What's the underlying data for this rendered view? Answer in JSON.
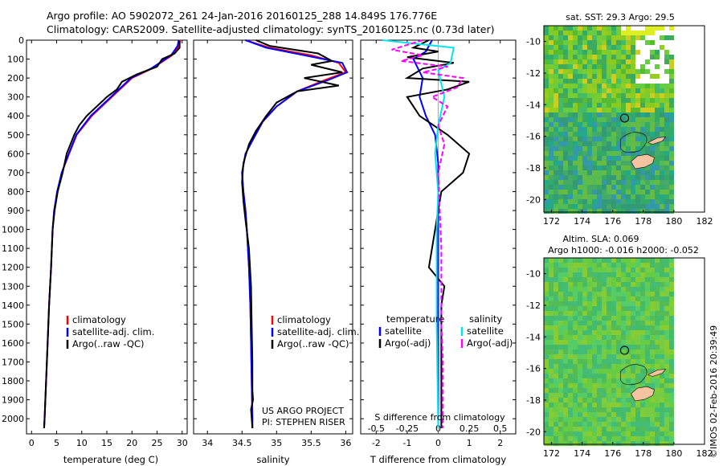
{
  "header": {
    "line1": "Argo profile: AO 5902072_261 24-Jan-2016 20160125_288 14.849S 176.776E",
    "line2": "Climatology: CARS2009. Satellite-adjusted climatology: synTS_20160125.nc (0.73d later)"
  },
  "stamp": "©IMOS 02-Feb-2016 20:39:49",
  "colors": {
    "climatology": "#ff0000",
    "satellite": "#0000ff",
    "argo": "#000000",
    "sal_sat": "#00e5ee",
    "sal_argo": "#ff00ff"
  },
  "chart_data": [
    {
      "type": "line",
      "id": "temperature",
      "xlabel": "temperature (deg C)",
      "ylabel": "",
      "xlim": [
        -1,
        31
      ],
      "ylim": [
        2080,
        0
      ],
      "xticks": [
        0,
        5,
        10,
        15,
        20,
        25,
        30
      ],
      "yticks": [
        0,
        100,
        200,
        300,
        400,
        500,
        600,
        700,
        800,
        900,
        1000,
        1100,
        1200,
        1300,
        1400,
        1500,
        1600,
        1700,
        1800,
        1900,
        2000
      ],
      "legend": [
        "climatology",
        "satellite-adj. clim.",
        "Argo(..raw -QC)"
      ],
      "series": [
        {
          "name": "climatology",
          "color": "#ff0000",
          "points": [
            [
              29.6,
              0
            ],
            [
              29.4,
              30
            ],
            [
              28,
              80
            ],
            [
              24,
              150
            ],
            [
              20,
              200
            ],
            [
              16,
              300
            ],
            [
              12,
              400
            ],
            [
              9,
              500
            ],
            [
              7.5,
              600
            ],
            [
              6,
              700
            ],
            [
              5.2,
              800
            ],
            [
              4.5,
              900
            ],
            [
              4.2,
              1000
            ],
            [
              3.9,
              1200
            ],
            [
              3.5,
              1400
            ],
            [
              3.2,
              1600
            ],
            [
              2.9,
              1800
            ],
            [
              2.6,
              2000
            ],
            [
              2.5,
              2050
            ]
          ]
        },
        {
          "name": "satellite-adj. clim.",
          "color": "#0000ff",
          "points": [
            [
              29.3,
              0
            ],
            [
              29.1,
              30
            ],
            [
              27.8,
              80
            ],
            [
              23.8,
              150
            ],
            [
              19.8,
              200
            ],
            [
              15.8,
              300
            ],
            [
              11.8,
              400
            ],
            [
              8.9,
              500
            ],
            [
              7.4,
              600
            ],
            [
              6,
              700
            ],
            [
              5.1,
              800
            ],
            [
              4.5,
              900
            ],
            [
              4.2,
              1000
            ],
            [
              3.9,
              1200
            ],
            [
              3.5,
              1400
            ],
            [
              3.2,
              1600
            ],
            [
              2.9,
              1800
            ],
            [
              2.6,
              2000
            ],
            [
              2.5,
              2050
            ]
          ]
        },
        {
          "name": "Argo(..raw -QC)",
          "color": "#000000",
          "points": [
            [
              29.5,
              5
            ],
            [
              29.5,
              40
            ],
            [
              28.5,
              70
            ],
            [
              26,
              100
            ],
            [
              25,
              140
            ],
            [
              21,
              180
            ],
            [
              18,
              220
            ],
            [
              17,
              260
            ],
            [
              15,
              300
            ],
            [
              11,
              400
            ],
            [
              9.5,
              450
            ],
            [
              8.5,
              500
            ],
            [
              7,
              600
            ],
            [
              6.2,
              700
            ],
            [
              5.2,
              800
            ],
            [
              4.6,
              900
            ],
            [
              4.2,
              1000
            ],
            [
              3.9,
              1200
            ],
            [
              3.5,
              1400
            ],
            [
              3.2,
              1600
            ],
            [
              2.9,
              1800
            ],
            [
              2.6,
              2000
            ],
            [
              2.5,
              2050
            ]
          ]
        }
      ]
    },
    {
      "type": "line",
      "id": "salinity",
      "xlabel": "salinity",
      "ylabel": "",
      "xlim": [
        33.8,
        36.1
      ],
      "ylim": [
        2080,
        0
      ],
      "xticks": [
        34,
        34.5,
        35,
        35.5,
        36
      ],
      "legend": [
        "climatology",
        "satellite-adj. clim.",
        "Argo(..raw -QC)"
      ],
      "annotation": [
        "US ARGO PROJECT",
        "PI: STEPHEN RISER"
      ],
      "series": [
        {
          "name": "climatology",
          "color": "#ff0000",
          "points": [
            [
              34.55,
              0
            ],
            [
              34.9,
              40
            ],
            [
              35.5,
              80
            ],
            [
              35.9,
              120
            ],
            [
              36,
              170
            ],
            [
              35.7,
              210
            ],
            [
              35.3,
              270
            ],
            [
              35,
              350
            ],
            [
              34.8,
              430
            ],
            [
              34.65,
              530
            ],
            [
              34.55,
              600
            ],
            [
              34.5,
              700
            ],
            [
              34.52,
              800
            ],
            [
              34.55,
              900
            ],
            [
              34.57,
              1000
            ],
            [
              34.6,
              1200
            ],
            [
              34.62,
              1400
            ],
            [
              34.63,
              1600
            ],
            [
              34.64,
              1800
            ],
            [
              34.65,
              2000
            ],
            [
              34.65,
              2050
            ]
          ]
        },
        {
          "name": "satellite-adj. clim.",
          "color": "#0000ff",
          "points": [
            [
              34.55,
              0
            ],
            [
              34.85,
              40
            ],
            [
              35.4,
              80
            ],
            [
              35.95,
              120
            ],
            [
              36.02,
              170
            ],
            [
              35.75,
              210
            ],
            [
              35.3,
              270
            ],
            [
              35,
              350
            ],
            [
              34.8,
              430
            ],
            [
              34.65,
              530
            ],
            [
              34.55,
              600
            ],
            [
              34.5,
              700
            ],
            [
              34.52,
              800
            ],
            [
              34.55,
              900
            ],
            [
              34.57,
              1000
            ],
            [
              34.6,
              1200
            ],
            [
              34.62,
              1400
            ],
            [
              34.63,
              1600
            ],
            [
              34.64,
              1800
            ],
            [
              34.65,
              2000
            ],
            [
              34.65,
              2050
            ]
          ]
        },
        {
          "name": "Argo(..raw -QC)",
          "color": "#000000",
          "points": [
            [
              34.7,
              0
            ],
            [
              34.9,
              30
            ],
            [
              35.6,
              70
            ],
            [
              35.8,
              110
            ],
            [
              35.5,
              130
            ],
            [
              35.95,
              170
            ],
            [
              35.4,
              200
            ],
            [
              35.9,
              240
            ],
            [
              35.3,
              270
            ],
            [
              35,
              330
            ],
            [
              34.85,
              400
            ],
            [
              34.7,
              480
            ],
            [
              34.6,
              550
            ],
            [
              34.52,
              650
            ],
            [
              34.5,
              750
            ],
            [
              34.52,
              850
            ],
            [
              34.55,
              950
            ],
            [
              34.6,
              1100
            ],
            [
              34.63,
              1300
            ],
            [
              34.64,
              1500
            ],
            [
              34.65,
              1700
            ],
            [
              34.65,
              1850
            ],
            [
              34.66,
              1900
            ],
            [
              34.63,
              1950
            ],
            [
              34.65,
              2050
            ]
          ]
        }
      ]
    },
    {
      "type": "line",
      "id": "difference",
      "xlabel": "T difference from climatology",
      "xlabel_top": "S difference from climatology",
      "ylabel": "",
      "xlim": [
        -2.5,
        2.5
      ],
      "ylim": [
        2080,
        0
      ],
      "xticks": [
        -2,
        -1,
        0,
        1,
        2
      ],
      "xticks_s": [
        "-0.5",
        "-0.25",
        "0",
        "0.25",
        "0.5"
      ],
      "legend_temperature_title": "temperature",
      "legend_salinity_title": "salinity",
      "legend_entries": [
        "satellite",
        "Argo(-adj)",
        "satellite",
        "Argo(-adj)"
      ],
      "series": [
        {
          "name": "satellite",
          "color": "#0000ff",
          "points": [
            [
              -0.2,
              0
            ],
            [
              -0.4,
              60
            ],
            [
              -0.8,
              100
            ],
            [
              -0.5,
              200
            ],
            [
              -0.6,
              300
            ],
            [
              -0.4,
              400
            ],
            [
              -0.1,
              500
            ],
            [
              0,
              650
            ],
            [
              0,
              800
            ],
            [
              0,
              1000
            ],
            [
              0,
              1500
            ],
            [
              0,
              2050
            ]
          ]
        },
        {
          "name": "Argo(-adj)",
          "color": "#000000",
          "points": [
            [
              -0.3,
              0
            ],
            [
              -0.8,
              40
            ],
            [
              0,
              60
            ],
            [
              -1,
              90
            ],
            [
              0.5,
              120
            ],
            [
              -0.5,
              150
            ],
            [
              -1,
              200
            ],
            [
              1,
              220
            ],
            [
              0.3,
              260
            ],
            [
              -1,
              300
            ],
            [
              -0.6,
              400
            ],
            [
              0.3,
              500
            ],
            [
              1,
              600
            ],
            [
              0.8,
              700
            ],
            [
              0.1,
              800
            ],
            [
              0,
              900
            ],
            [
              -0.2,
              1100
            ],
            [
              -0.3,
              1200
            ],
            [
              0.2,
              1300
            ],
            [
              0.1,
              1400
            ],
            [
              0.1,
              1600
            ],
            [
              0.1,
              1800
            ],
            [
              0.1,
              2050
            ]
          ]
        },
        {
          "name": "satellite",
          "color": "#00e5ee",
          "points": [
            [
              -1.8,
              0
            ],
            [
              0.5,
              40
            ],
            [
              0.4,
              120
            ],
            [
              0,
              160
            ],
            [
              0.2,
              300
            ],
            [
              0,
              450
            ],
            [
              -0.1,
              600
            ],
            [
              0,
              800
            ],
            [
              -0.05,
              1000
            ],
            [
              -0.05,
              1500
            ],
            [
              0,
              2050
            ]
          ]
        },
        {
          "name": "Argo(-adj)",
          "color": "#ff00ff",
          "dashed": true,
          "points": [
            [
              -0.5,
              0
            ],
            [
              -1.5,
              50
            ],
            [
              -0.5,
              80
            ],
            [
              -1.2,
              110
            ],
            [
              0.3,
              140
            ],
            [
              -0.5,
              170
            ],
            [
              0.8,
              200
            ],
            [
              0.6,
              250
            ],
            [
              -0.2,
              300
            ],
            [
              0.3,
              350
            ],
            [
              0,
              450
            ],
            [
              0.2,
              550
            ],
            [
              0,
              700
            ],
            [
              0.05,
              900
            ],
            [
              0.1,
              1100
            ],
            [
              0.1,
              1300
            ],
            [
              0.1,
              1500
            ],
            [
              0.15,
              1700
            ],
            [
              0.15,
              2050
            ]
          ]
        }
      ]
    },
    {
      "type": "heatmap",
      "id": "sst_map",
      "title": "sat. SST: 29.3 Argo: 29.5",
      "xlim": [
        171.5,
        182
      ],
      "ylim": [
        -20.8,
        -9
      ],
      "xticks": [
        172,
        174,
        176,
        178,
        180,
        182
      ],
      "yticks": [
        -10,
        -12,
        -14,
        -16,
        -18,
        -20
      ],
      "marker": [
        176.776,
        -14.849
      ]
    },
    {
      "type": "heatmap",
      "id": "sla_map",
      "title": "Altim. SLA: 0.069",
      "subtitle": "Argo h1000: -0.016 h2000: -0.052",
      "xlim": [
        171.5,
        182
      ],
      "ylim": [
        -20.8,
        -9
      ],
      "xticks": [
        172,
        174,
        176,
        178,
        180,
        182
      ],
      "yticks": [
        -10,
        -12,
        -14,
        -16,
        -18,
        -20
      ],
      "marker": [
        176.776,
        -14.849
      ]
    }
  ]
}
